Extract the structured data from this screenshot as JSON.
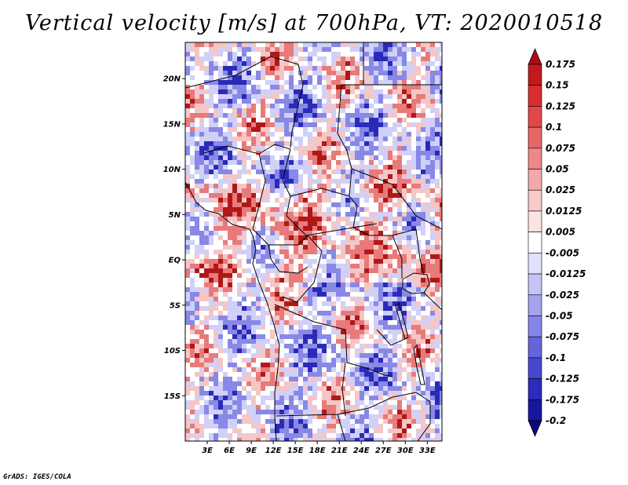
{
  "title": "Vertical velocity [m/s] at 700hPa, VT: 2020010518",
  "credit": "GrADS: IGES/COLA",
  "map": {
    "variable": "Vertical velocity",
    "units": "m/s",
    "level": "700hPa",
    "valid_time": "2020010518",
    "lon_range": [
      0,
      35
    ],
    "lat_range": [
      -20,
      24
    ],
    "lat_ticks": [
      {
        "value": 20,
        "label": "20N"
      },
      {
        "value": 15,
        "label": "15N"
      },
      {
        "value": 10,
        "label": "10N"
      },
      {
        "value": 5,
        "label": "5N"
      },
      {
        "value": 0,
        "label": "EQ"
      },
      {
        "value": -5,
        "label": "5S"
      },
      {
        "value": -10,
        "label": "10S"
      },
      {
        "value": -15,
        "label": "15S"
      }
    ],
    "lon_ticks": [
      {
        "value": 3,
        "label": "3E"
      },
      {
        "value": 6,
        "label": "6E"
      },
      {
        "value": 9,
        "label": "9E"
      },
      {
        "value": 12,
        "label": "12E"
      },
      {
        "value": 15,
        "label": "15E"
      },
      {
        "value": 18,
        "label": "18E"
      },
      {
        "value": 21,
        "label": "21E"
      },
      {
        "value": 24,
        "label": "24E"
      },
      {
        "value": 27,
        "label": "27E"
      },
      {
        "value": 30,
        "label": "30E"
      },
      {
        "value": 33,
        "label": "33E"
      }
    ]
  },
  "colorbar": {
    "labels_top_to_bottom": [
      "0.175",
      "0.15",
      "0.125",
      "0.1",
      "0.075",
      "0.05",
      "0.025",
      "0.0125",
      "0.005",
      "-0.005",
      "-0.0125",
      "-0.025",
      "-0.05",
      "-0.075",
      "-0.1",
      "-0.125",
      "-0.175",
      "-0.2"
    ],
    "colors_top_to_bottom": [
      "#a50f15",
      "#c4191c",
      "#d92d2d",
      "#e34848",
      "#e86666",
      "#ee8888",
      "#f3a9a9",
      "#f8caca",
      "#fbe3e3",
      "#ffffff",
      "#e1e1fb",
      "#c4c4f5",
      "#a3a3ee",
      "#8585e8",
      "#6464dc",
      "#4646cf",
      "#2b2bbc",
      "#16169e",
      "#0a0a78"
    ],
    "extends": "both"
  },
  "field_colors": {
    "strong_up": "#b01818",
    "up": "#e87a7a",
    "weak_up": "#f5c6c6",
    "neutral": "#ffffff",
    "weak_down": "#d0d0f8",
    "down": "#8888e6",
    "strong_down": "#2a2ab8"
  }
}
